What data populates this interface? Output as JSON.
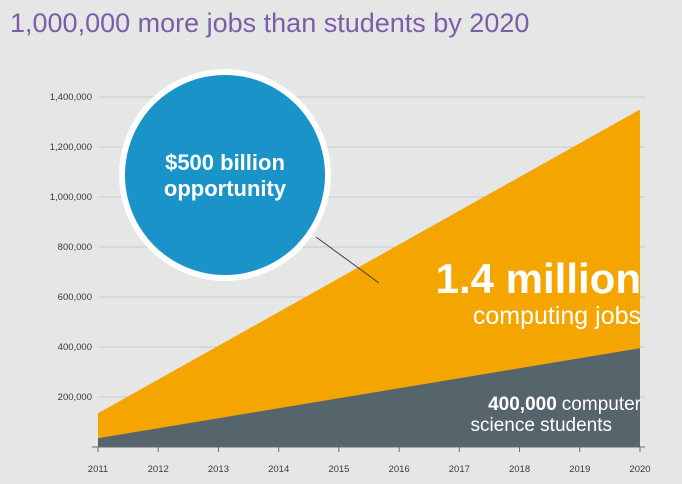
{
  "chart_data": {
    "type": "area",
    "title": "1,000,000 more jobs than students by 2020",
    "x": [
      "2011",
      "2012",
      "2013",
      "2014",
      "2015",
      "2016",
      "2017",
      "2018",
      "2019",
      "2020"
    ],
    "series": [
      {
        "name": "computing jobs",
        "values": [
          135000,
          270000,
          405000,
          540000,
          675000,
          810000,
          945000,
          1080000,
          1215000,
          1350000
        ],
        "color": "#f5a500"
      },
      {
        "name": "computer science students",
        "values": [
          35000,
          75000,
          115000,
          155000,
          195000,
          235000,
          275000,
          315000,
          355000,
          395000
        ],
        "color": "#56646b"
      }
    ],
    "yticks": [
      "200,000",
      "400,000",
      "600,000",
      "800,000",
      "1,000,000",
      "1,200,000",
      "1,400,000"
    ],
    "ytick_values": [
      200000,
      400000,
      600000,
      800000,
      1000000,
      1200000,
      1400000
    ],
    "ylim": [
      0,
      1450000
    ],
    "grid": true,
    "annotations": {
      "circle_line1": "$500 billion",
      "circle_line2": "opportunity",
      "circle_color": "#1a93c9",
      "jobs_big": "1.4 million",
      "jobs_sub": "computing jobs",
      "students_bold": "400,000",
      "students_rest": "computer",
      "students_line2": "science students"
    }
  }
}
